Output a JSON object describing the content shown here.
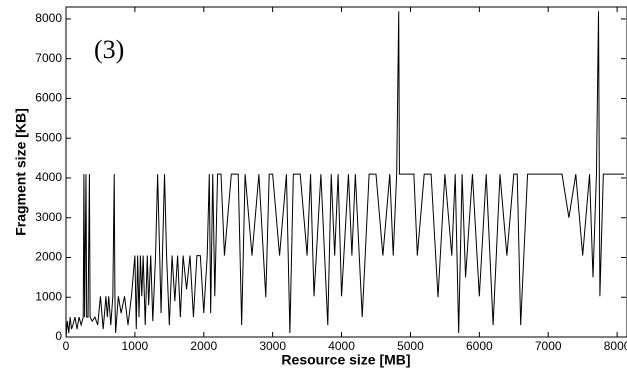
{
  "chart_data": {
    "type": "line",
    "annotation": "(3)",
    "x_label": "Resource size [MB]",
    "y_label": "Fragment size [KB]",
    "xlim": [
      0,
      8100
    ],
    "ylim": [
      0,
      8300
    ],
    "xticks": [
      0,
      1000,
      2000,
      3000,
      4000,
      5000,
      6000,
      7000,
      8000
    ],
    "yticks": [
      0,
      1000,
      2000,
      3000,
      4000,
      5000,
      6000,
      7000,
      8000
    ],
    "series": [
      {
        "color": "#000000",
        "x": [
          0,
          20,
          40,
          60,
          80,
          100,
          130,
          160,
          190,
          220,
          250,
          260,
          270,
          290,
          300,
          320,
          340,
          350,
          380,
          420,
          460,
          500,
          540,
          580,
          600,
          620,
          650,
          680,
          700,
          710,
          720,
          760,
          800,
          850,
          900,
          950,
          1000,
          1020,
          1040,
          1060,
          1080,
          1100,
          1120,
          1150,
          1180,
          1200,
          1230,
          1260,
          1300,
          1330,
          1360,
          1380,
          1400,
          1430,
          1460,
          1500,
          1540,
          1580,
          1620,
          1660,
          1700,
          1750,
          1800,
          1850,
          1900,
          1950,
          2000,
          2050,
          2080,
          2100,
          2130,
          2160,
          2200,
          2250,
          2300,
          2400,
          2500,
          2550,
          2600,
          2700,
          2800,
          2900,
          2950,
          3000,
          3100,
          3200,
          3250,
          3300,
          3400,
          3500,
          3550,
          3600,
          3700,
          3800,
          3850,
          3900,
          3950,
          4000,
          4100,
          4150,
          4200,
          4300,
          4400,
          4500,
          4600,
          4700,
          4750,
          4800,
          4830,
          4840,
          4900,
          5000,
          5050,
          5100,
          5200,
          5300,
          5400,
          5500,
          5600,
          5650,
          5700,
          5750,
          5800,
          5900,
          6000,
          6100,
          6200,
          6300,
          6400,
          6500,
          6550,
          6600,
          6700,
          6800,
          6900,
          7000,
          7100,
          7200,
          7300,
          7400,
          7500,
          7600,
          7650,
          7700,
          7730,
          7750,
          7800,
          7900,
          8000,
          8100
        ],
        "values": [
          0,
          400,
          100,
          500,
          200,
          300,
          500,
          200,
          500,
          300,
          500,
          4096,
          500,
          4096,
          500,
          500,
          4096,
          500,
          400,
          500,
          300,
          1024,
          200,
          1024,
          500,
          1024,
          300,
          1024,
          4096,
          1024,
          100,
          1024,
          600,
          1024,
          300,
          1024,
          2048,
          200,
          2048,
          500,
          2048,
          1024,
          2048,
          300,
          2048,
          800,
          2048,
          400,
          2048,
          4096,
          2048,
          600,
          2048,
          4096,
          2048,
          300,
          2048,
          900,
          2048,
          500,
          2048,
          1200,
          2048,
          500,
          2048,
          2048,
          600,
          2048,
          4096,
          600,
          4096,
          1024,
          4096,
          4096,
          2048,
          4096,
          4096,
          300,
          4096,
          2048,
          4096,
          1000,
          4096,
          4096,
          2048,
          4096,
          100,
          4096,
          4096,
          2048,
          4096,
          1024,
          4096,
          300,
          4096,
          2048,
          4096,
          1024,
          4096,
          2048,
          4096,
          500,
          4096,
          4096,
          2048,
          4096,
          2048,
          4096,
          8192,
          4096,
          4096,
          4096,
          4096,
          2048,
          4096,
          4096,
          1000,
          4096,
          2048,
          4096,
          100,
          4096,
          1500,
          4096,
          1024,
          4096,
          300,
          4096,
          2048,
          4096,
          4096,
          300,
          4096,
          4096,
          4096,
          4096,
          4096,
          4096,
          3000,
          4096,
          2048,
          4096,
          1500,
          4096,
          8192,
          1024,
          4096,
          4096,
          4096,
          4096
        ]
      }
    ]
  }
}
